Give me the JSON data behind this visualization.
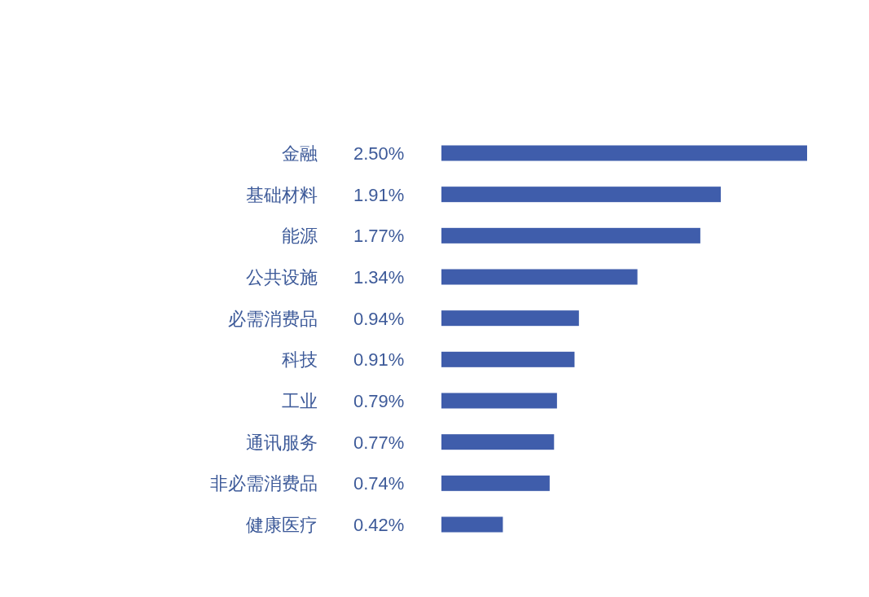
{
  "chart_data": {
    "type": "bar",
    "orientation": "horizontal",
    "categories": [
      "金融",
      "基础材料",
      "能源",
      "公共设施",
      "必需消费品",
      "科技",
      "工业",
      "通讯服务",
      "非必需消费品",
      "健康医疗"
    ],
    "values": [
      2.5,
      1.91,
      1.77,
      1.34,
      0.94,
      0.91,
      0.79,
      0.77,
      0.74,
      0.42
    ],
    "value_labels": [
      "2.50%",
      "1.91%",
      "1.77%",
      "1.34%",
      "0.94%",
      "0.91%",
      "0.79%",
      "0.77%",
      "0.74%",
      "0.42%"
    ],
    "color": "#3f5dab"
  }
}
